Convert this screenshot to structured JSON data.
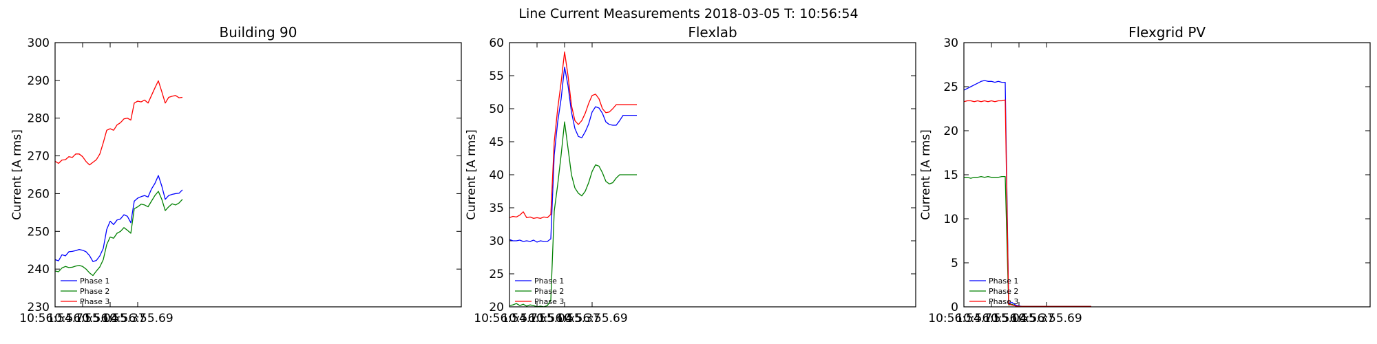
{
  "figure": {
    "suptitle": "Line Current Measurements 2018-03-05 T: 10:56:54"
  },
  "chart_data": [
    {
      "type": "line",
      "title": "Building 90",
      "xlabel": "",
      "ylabel": "Current [A rms]",
      "xlim": [
        10.5671,
        10.573
      ],
      "ylim": [
        230,
        300
      ],
      "xticks": [
        10.5671,
        10.5675,
        10.5679,
        10.5683
      ],
      "xtick_labels": [
        "10:56:54.71",
        "10:56:55.04",
        "10:56:55.37",
        "10:56:55.69"
      ],
      "yticks": [
        230,
        240,
        250,
        260,
        270,
        280,
        290,
        300
      ],
      "ytick_labels": [
        "230",
        "240",
        "250",
        "260",
        "270",
        "280",
        "290",
        "300"
      ],
      "legend": "bottom-left",
      "grid": false,
      "x": [
        10.5671,
        10.56715,
        10.5672,
        10.56725,
        10.5673,
        10.56735,
        10.5674,
        10.56745,
        10.5675,
        10.56755,
        10.5676,
        10.56765,
        10.5677,
        10.56775,
        10.5678,
        10.56785,
        10.5679,
        10.56795,
        10.568,
        10.56805,
        10.5681,
        10.56815,
        10.5682,
        10.56825,
        10.5683,
        10.56835,
        10.5684,
        10.56845,
        10.5685,
        10.56855,
        10.5686,
        10.56865,
        10.5687,
        10.56875,
        10.5688,
        10.56885,
        10.5689,
        10.56895
      ],
      "series": [
        {
          "name": "Phase 1",
          "color": "#0000ff",
          "values": [
            242.5,
            242.2,
            243.8,
            243.5,
            244.6,
            244.7,
            244.9,
            245.2,
            245.0,
            244.6,
            243.6,
            242.0,
            242.3,
            243.5,
            245.5,
            250.5,
            252.7,
            251.8,
            253.0,
            253.3,
            254.4,
            254.0,
            252.3,
            258.0,
            258.8,
            259.2,
            259.5,
            259.1,
            261.2,
            262.7,
            264.8,
            262.0,
            258.5,
            259.5,
            259.8,
            260.0,
            260.1,
            261.0
          ]
        },
        {
          "name": "Phase 2",
          "color": "#008000",
          "values": [
            239.5,
            239.3,
            240.3,
            240.7,
            240.4,
            240.5,
            240.8,
            241.0,
            240.7,
            240.0,
            239.0,
            238.3,
            239.5,
            240.6,
            242.5,
            246.5,
            248.5,
            248.2,
            249.5,
            250.0,
            251.0,
            250.3,
            249.5,
            256.0,
            256.5,
            257.2,
            257.0,
            256.5,
            258.0,
            259.5,
            260.6,
            258.5,
            255.5,
            256.5,
            257.3,
            257.0,
            257.5,
            258.5
          ]
        },
        {
          "name": "Phase 3",
          "color": "#ff0000",
          "values": [
            268.6,
            268.0,
            268.9,
            269.0,
            269.8,
            269.6,
            270.5,
            270.5,
            269.8,
            268.5,
            267.6,
            268.3,
            269.0,
            270.5,
            273.5,
            276.8,
            277.2,
            276.8,
            278.2,
            278.8,
            279.8,
            280.0,
            279.5,
            284.0,
            284.5,
            284.3,
            284.8,
            284.0,
            286.0,
            288.0,
            289.9,
            287.0,
            284.0,
            285.5,
            285.8,
            286.0,
            285.4,
            285.5
          ]
        }
      ]
    },
    {
      "type": "line",
      "title": "Flexlab",
      "xlabel": "",
      "ylabel": "Current [A rms]",
      "xlim": [
        10.5671,
        10.573
      ],
      "ylim": [
        20,
        60
      ],
      "xticks": [
        10.5671,
        10.5675,
        10.5679,
        10.5683
      ],
      "xtick_labels": [
        "10:56:54.71",
        "10:56:55.04",
        "10:56:55.37",
        "10:56:55.69"
      ],
      "yticks": [
        20,
        25,
        30,
        35,
        40,
        45,
        50,
        55,
        60
      ],
      "ytick_labels": [
        "20",
        "25",
        "30",
        "35",
        "40",
        "45",
        "50",
        "55",
        "60"
      ],
      "legend": "bottom-left",
      "grid": false,
      "x": [
        10.5671,
        10.56715,
        10.5672,
        10.56725,
        10.5673,
        10.56735,
        10.5674,
        10.56745,
        10.5675,
        10.56755,
        10.5676,
        10.56765,
        10.5677,
        10.56775,
        10.5678,
        10.56785,
        10.5679,
        10.56795,
        10.568,
        10.56805,
        10.5681,
        10.56815,
        10.5682,
        10.56825,
        10.5683,
        10.56835,
        10.5684,
        10.56845,
        10.5685,
        10.56855,
        10.5686,
        10.56865,
        10.5687,
        10.56875,
        10.5688,
        10.56885,
        10.5689,
        10.56895
      ],
      "series": [
        {
          "name": "Phase 1",
          "color": "#0000ff",
          "values": [
            30.2,
            30.0,
            30.0,
            30.1,
            29.9,
            30.0,
            29.9,
            30.1,
            29.8,
            30.0,
            29.9,
            29.9,
            30.3,
            43.0,
            48.0,
            51.5,
            56.3,
            53.5,
            49.5,
            47.0,
            45.8,
            45.6,
            46.5,
            47.7,
            49.5,
            50.3,
            50.1,
            49.3,
            48.0,
            47.6,
            47.5,
            47.5,
            48.2,
            49.0,
            49.0,
            49.0,
            49.0,
            49.0
          ]
        },
        {
          "name": "Phase 2",
          "color": "#008000",
          "values": [
            20.2,
            20.3,
            20.5,
            20.2,
            20.4,
            20.1,
            20.3,
            20.2,
            20.0,
            20.1,
            20.0,
            20.2,
            21.0,
            34.5,
            38.5,
            43.0,
            48.0,
            44.0,
            40.0,
            38.0,
            37.2,
            36.8,
            37.5,
            38.8,
            40.5,
            41.5,
            41.3,
            40.3,
            39.0,
            38.6,
            38.8,
            39.5,
            40.0,
            40.0,
            40.0,
            40.0,
            40.0,
            40.0
          ]
        },
        {
          "name": "Phase 3",
          "color": "#ff0000",
          "values": [
            33.5,
            33.7,
            33.6,
            33.9,
            34.4,
            33.5,
            33.6,
            33.4,
            33.5,
            33.4,
            33.6,
            33.5,
            34.0,
            45.0,
            50.0,
            54.0,
            58.6,
            55.0,
            50.5,
            48.2,
            47.6,
            48.2,
            49.3,
            50.8,
            52.0,
            52.2,
            51.5,
            50.0,
            49.4,
            49.5,
            50.0,
            50.6,
            50.6,
            50.6,
            50.6,
            50.6,
            50.6,
            50.6
          ]
        }
      ]
    },
    {
      "type": "line",
      "title": "Flexgrid PV",
      "xlabel": "",
      "ylabel": "Current [A rms]",
      "xlim": [
        10.5671,
        10.573
      ],
      "ylim": [
        0,
        30
      ],
      "xticks": [
        10.5671,
        10.5675,
        10.5679,
        10.5683
      ],
      "xtick_labels": [
        "10:56:54.71",
        "10:56:55.04",
        "10:56:55.37",
        "10:56:55.69"
      ],
      "yticks": [
        0,
        5,
        10,
        15,
        20,
        25,
        30
      ],
      "ytick_labels": [
        "0",
        "5",
        "10",
        "15",
        "20",
        "25",
        "30"
      ],
      "legend": "bottom-left",
      "grid": false,
      "x": [
        10.5671,
        10.56715,
        10.5672,
        10.56725,
        10.5673,
        10.56735,
        10.5674,
        10.56745,
        10.5675,
        10.56755,
        10.5676,
        10.56765,
        10.5677,
        10.56775,
        10.5678,
        10.56785,
        10.5679,
        10.56795,
        10.568,
        10.56805,
        10.5681,
        10.56815,
        10.5682,
        10.56825,
        10.5683,
        10.56835,
        10.5684,
        10.56845,
        10.5685,
        10.56855,
        10.5686,
        10.56865,
        10.5687,
        10.56875,
        10.5688,
        10.56885,
        10.5689,
        10.56895
      ],
      "series": [
        {
          "name": "Phase 1",
          "color": "#0000ff",
          "values": [
            24.6,
            24.8,
            25.0,
            25.2,
            25.4,
            25.6,
            25.7,
            25.6,
            25.6,
            25.5,
            25.6,
            25.5,
            25.5,
            0.4,
            0.5,
            0.2,
            0.1,
            0.05,
            0.05,
            0.05,
            0.05,
            0.05,
            0.05,
            0.05,
            0.05,
            0.05,
            0.05,
            0.05,
            0.05,
            0.05,
            0.05,
            0.05,
            0.05,
            0.05,
            0.05,
            0.05,
            0.05,
            0.05
          ]
        },
        {
          "name": "Phase 2",
          "color": "#008000",
          "values": [
            14.7,
            14.7,
            14.6,
            14.7,
            14.7,
            14.8,
            14.7,
            14.8,
            14.7,
            14.7,
            14.7,
            14.8,
            14.8,
            0.2,
            0.3,
            0.1,
            0.05,
            0.05,
            0.05,
            0.05,
            0.05,
            0.05,
            0.05,
            0.05,
            0.05,
            0.05,
            0.05,
            0.05,
            0.05,
            0.05,
            0.05,
            0.05,
            0.05,
            0.05,
            0.05,
            0.05,
            0.05,
            0.05
          ]
        },
        {
          "name": "Phase 3",
          "color": "#ff0000",
          "values": [
            23.3,
            23.4,
            23.4,
            23.3,
            23.4,
            23.3,
            23.4,
            23.3,
            23.4,
            23.3,
            23.4,
            23.4,
            23.5,
            0.3,
            0.2,
            0.1,
            0.05,
            0.05,
            0.05,
            0.05,
            0.05,
            0.05,
            0.05,
            0.05,
            0.05,
            0.05,
            0.05,
            0.05,
            0.05,
            0.05,
            0.05,
            0.05,
            0.05,
            0.05,
            0.05,
            0.05,
            0.05,
            0.05
          ]
        }
      ]
    }
  ]
}
